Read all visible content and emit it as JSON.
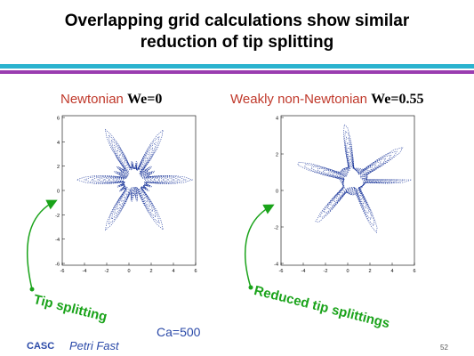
{
  "slide": {
    "title_line1": "Overlapping grid calculations show similar",
    "title_line2": "reduction of tip splitting",
    "left_heading": {
      "text": "Newtonian ",
      "param": "We=0"
    },
    "right_heading": {
      "text": "Weakly non-Newtonian ",
      "param": "We=0.55"
    },
    "left_plot": {
      "y_ticks": [
        "6",
        "4",
        "2",
        "0",
        "-2",
        "-4",
        "-6"
      ],
      "x_ticks": [
        "-6",
        "-4",
        "-2",
        "0",
        "2",
        "4",
        "6"
      ]
    },
    "right_plot": {
      "y_ticks": [
        "4",
        "2",
        "0",
        "-2",
        "-4"
      ],
      "x_ticks": [
        "-6",
        "-4",
        "-2",
        "0",
        "2",
        "4",
        "6"
      ]
    },
    "left_callout": "Tip splitting",
    "right_callout": "Reduced tip splittings",
    "ca_label": "Ca=500",
    "org": "CASC",
    "author": "Petri Fast",
    "page_number": "52",
    "colors": {
      "rule_cyan": "#2ab3cf",
      "rule_purple": "#9a3db0",
      "heading_red": "#c0392b",
      "callout_green": "#1aa31a",
      "footer_blue": "#2b4aa8",
      "contour_blue": "#1f3a9c"
    }
  }
}
